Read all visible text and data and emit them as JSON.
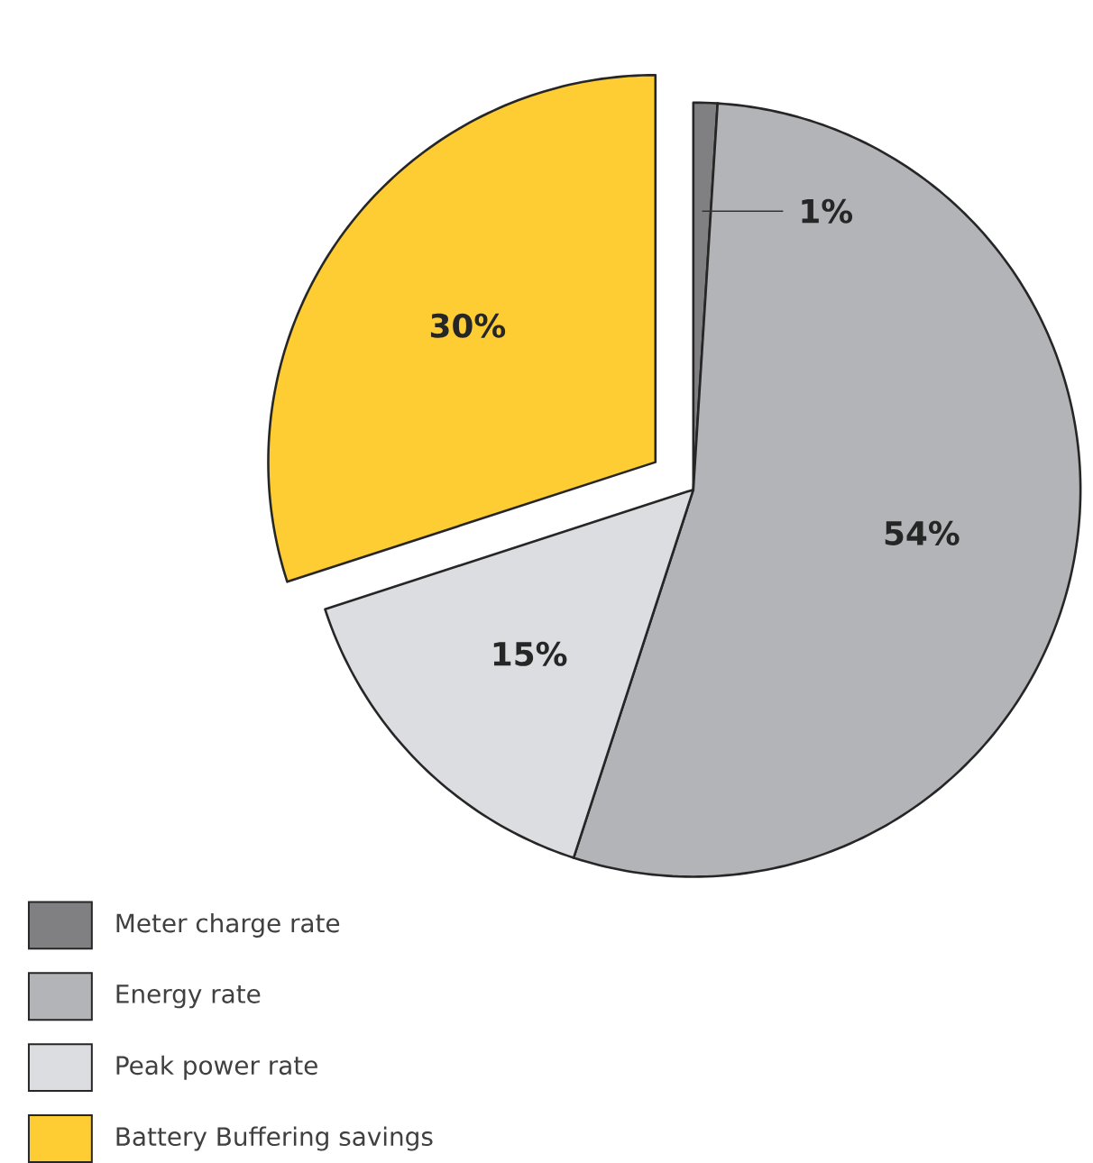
{
  "chart_data": {
    "type": "pie",
    "categories": [
      "Meter charge rate",
      "Energy rate",
      "Peak power rate",
      "Battery Buffering savings"
    ],
    "values": [
      1,
      54,
      15,
      30
    ],
    "colors": [
      "#808083",
      "#b3b4b7",
      "#dcdde0",
      "#fecd34"
    ],
    "value_labels": [
      "1%",
      "54%",
      "15%",
      "30%"
    ],
    "legend": "bottom"
  }
}
